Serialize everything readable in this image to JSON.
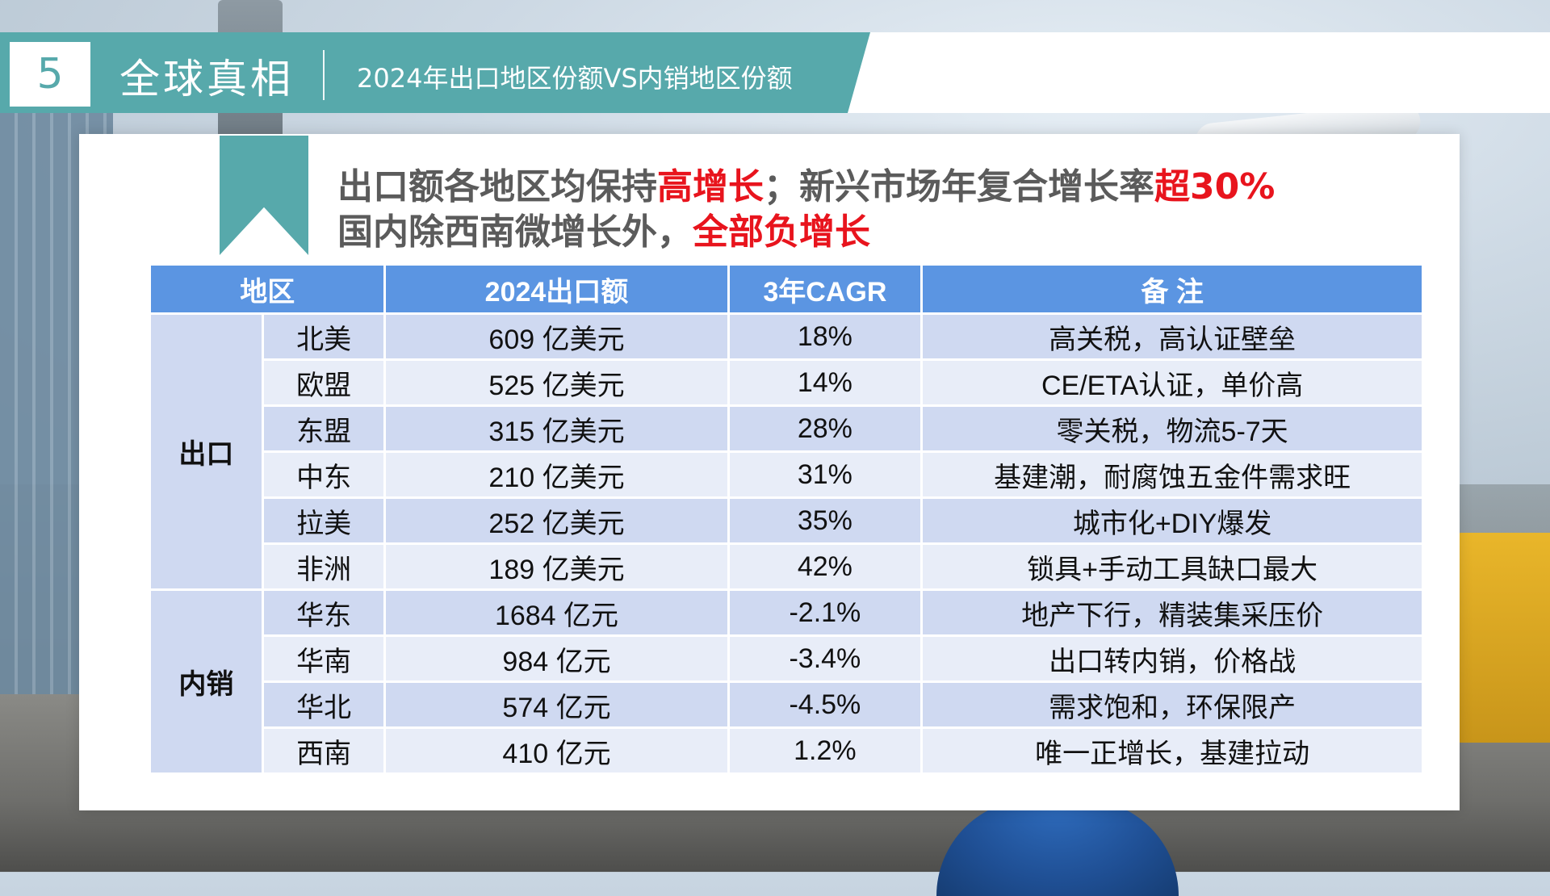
{
  "header": {
    "section_number": "5",
    "section_title": "全球真相",
    "subtitle": "2024年出口地区份额VS内销地区份额"
  },
  "headline": {
    "line1_a": "出口额各地区均保持",
    "line1_b": "高增长",
    "line1_c": "；新兴市场年复合增长率",
    "line1_d": "超30%",
    "line2_a": "国内除西南微增长外，",
    "line2_b": "全部负增长"
  },
  "table": {
    "headers": [
      "地区",
      "2024出口额",
      "3年CAGR",
      "备 注"
    ],
    "groups": [
      "出口",
      "内销"
    ],
    "rows": [
      {
        "region": "北美",
        "amount": "609 亿美元",
        "cagr": "18%",
        "note": "高关税，高认证壁垒"
      },
      {
        "region": "欧盟",
        "amount": "525 亿美元",
        "cagr": "14%",
        "note": "CE/ETA认证，单价高"
      },
      {
        "region": "东盟",
        "amount": "315 亿美元",
        "cagr": "28%",
        "note": "零关税，物流5-7天"
      },
      {
        "region": "中东",
        "amount": "210 亿美元",
        "cagr": "31%",
        "note": "基建潮，耐腐蚀五金件需求旺"
      },
      {
        "region": "拉美",
        "amount": "252 亿美元",
        "cagr": "35%",
        "note": "城市化+DIY爆发"
      },
      {
        "region": "非洲",
        "amount": "189 亿美元",
        "cagr": "42%",
        "note": "锁具+手动工具缺口最大"
      },
      {
        "region": "华东",
        "amount": "1684 亿元",
        "cagr": "-2.1%",
        "note": "地产下行，精装集采压价"
      },
      {
        "region": "华南",
        "amount": "984 亿元",
        "cagr": "-3.4%",
        "note": "出口转内销，价格战"
      },
      {
        "region": "华北",
        "amount": "574 亿元",
        "cagr": "-4.5%",
        "note": "需求饱和，环保限产"
      },
      {
        "region": "西南",
        "amount": "410 亿元",
        "cagr": "1.2%",
        "note": "唯一正增长，基建拉动"
      }
    ]
  },
  "colors": {
    "accent_teal": "#57a9ab",
    "header_blue": "#5b95e2",
    "highlight_red": "#e8141d",
    "row_dark": "#cfd9f1",
    "row_light": "#e8edf8"
  }
}
